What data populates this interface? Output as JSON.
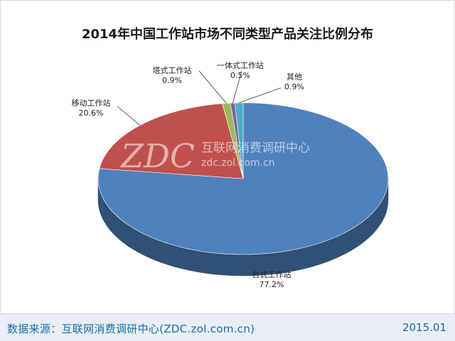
{
  "chart_data": {
    "type": "pie",
    "title": "2014年中国工作站市场不同类型产品关注比例分布",
    "slices": [
      {
        "label": "台式工作站",
        "value": 77.2,
        "display": "77.2%",
        "color": "#4f81bd"
      },
      {
        "label": "移动工作站",
        "value": 20.6,
        "display": "20.6%",
        "color": "#c0504d"
      },
      {
        "label": "塔式工作站",
        "value": 0.9,
        "display": "0.9%",
        "color": "#9bbb59"
      },
      {
        "label": "一体式工作站",
        "value": 0.5,
        "display": "0.5%",
        "color": "#8064a2"
      },
      {
        "label": "其他",
        "value": 0.9,
        "display": "0.9%",
        "color": "#4bacc6"
      }
    ]
  },
  "watermark": {
    "logo": "ZDC",
    "name": "互联网消费调研中心",
    "url": "zdc.zol.com.cn"
  },
  "footer": {
    "source": "数据来源：互联网消费调研中心(ZDC.zol.com.cn)",
    "date": "2015.01"
  }
}
